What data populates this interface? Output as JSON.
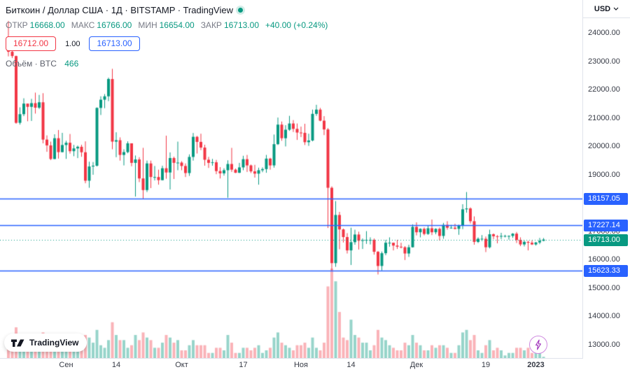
{
  "header": {
    "symbol_title": "Биткоин / Доллар США · 1Д · BITSTAMP · TradingView",
    "ohlc": {
      "open_label": "ОТКР",
      "open": "16668.00",
      "high_label": "МАКС",
      "high": "16766.00",
      "low_label": "МИН",
      "low": "16654.00",
      "close_label": "ЗАКР",
      "close": "16713.00",
      "change": "+40.00 (+0.24%)"
    },
    "sell_price": "16712.00",
    "spread": "1.00",
    "buy_price": "16713.00",
    "volume_label": "Объём · BTC",
    "volume_value": "466"
  },
  "price_axis": {
    "currency_label": "USD",
    "ticks": [
      {
        "label": "24000.00",
        "value": 24000
      },
      {
        "label": "23000.00",
        "value": 23000
      },
      {
        "label": "22000.00",
        "value": 22000
      },
      {
        "label": "21000.00",
        "value": 21000
      },
      {
        "label": "20000.00",
        "value": 20000
      },
      {
        "label": "19000.00",
        "value": 19000
      },
      {
        "label": "18000.00",
        "value": 18000
      },
      {
        "label": "17000.00",
        "value": 17000
      },
      {
        "label": "16000.00",
        "value": 16000
      },
      {
        "label": "15000.00",
        "value": 15000
      },
      {
        "label": "14000.00",
        "value": 14000
      },
      {
        "label": "13000.00",
        "value": 13000
      }
    ],
    "lines": [
      {
        "label": "18157.05",
        "value": 18157.05,
        "color": "#2962ff"
      },
      {
        "label": "17227.14",
        "value": 17227.14,
        "color": "#2962ff"
      },
      {
        "label": "15623.33",
        "value": 15623.33,
        "color": "#2962ff"
      }
    ],
    "last_price": {
      "label": "16713.00",
      "value": 16713.0,
      "color": "#089981"
    }
  },
  "time_axis": {
    "labels": [
      {
        "label": "Сен",
        "index": 15,
        "year": false
      },
      {
        "label": "14",
        "index": 28,
        "year": false
      },
      {
        "label": "Окт",
        "index": 45,
        "year": false
      },
      {
        "label": "17",
        "index": 61,
        "year": false
      },
      {
        "label": "Ноя",
        "index": 76,
        "year": false
      },
      {
        "label": "14",
        "index": 89,
        "year": false
      },
      {
        "label": "Дек",
        "index": 106,
        "year": false
      },
      {
        "label": "19",
        "index": 124,
        "year": false
      },
      {
        "label": "2023",
        "index": 137,
        "year": true
      }
    ]
  },
  "footer": {
    "logo_text": "TradingView"
  },
  "colors": {
    "up": "#089981",
    "down": "#f23645",
    "vol_up": "rgba(8,153,129,0.42)",
    "vol_down": "rgba(242,54,69,0.38)",
    "level_line": "#2962ff",
    "axis_text": "#363a45"
  },
  "chart_data": {
    "type": "candlestick",
    "title": "Биткоин / Доллар США, 1Д, BITSTAMP",
    "ylabel": "USD",
    "price_range": [
      12530,
      25170
    ],
    "volume_axis_max": 35,
    "levels": [
      18157.05,
      17227.14,
      15623.33
    ],
    "last_close": 16713.0,
    "candles_format": [
      "date(MM-DD)",
      "open",
      "high",
      "low",
      "close",
      "volume_kBTC"
    ],
    "candles": [
      [
        "08-17",
        23854,
        24430,
        23180,
        23342,
        7
      ],
      [
        "08-18",
        23342,
        23590,
        23120,
        23191,
        5
      ],
      [
        "08-19",
        23191,
        23205,
        20800,
        20834,
        12
      ],
      [
        "08-20",
        20834,
        21380,
        20770,
        21139,
        7
      ],
      [
        "08-21",
        21139,
        21700,
        21070,
        21512,
        5
      ],
      [
        "08-22",
        21512,
        21512,
        20890,
        21398,
        7
      ],
      [
        "08-23",
        21398,
        21680,
        20900,
        21528,
        6
      ],
      [
        "08-24",
        21528,
        21900,
        21160,
        21368,
        6
      ],
      [
        "08-25",
        21368,
        21820,
        21320,
        21559,
        5
      ],
      [
        "08-26",
        21559,
        21880,
        20110,
        20241,
        10
      ],
      [
        "08-27",
        20241,
        20390,
        19810,
        20037,
        6
      ],
      [
        "08-28",
        20037,
        20170,
        19520,
        19556,
        6
      ],
      [
        "08-29",
        19556,
        20430,
        19550,
        20290,
        7
      ],
      [
        "08-30",
        20290,
        20580,
        19570,
        19799,
        8
      ],
      [
        "08-31",
        19799,
        20480,
        19790,
        20050,
        6
      ],
      [
        "09-01",
        20050,
        20200,
        19561,
        20130,
        6
      ],
      [
        "09-02",
        20130,
        20440,
        19747,
        19832,
        6
      ],
      [
        "09-03",
        19832,
        20055,
        19655,
        19930,
        3
      ],
      [
        "09-04",
        19930,
        20030,
        19588,
        19988,
        3
      ],
      [
        "09-05",
        19988,
        20060,
        19635,
        19794,
        5
      ],
      [
        "09-06",
        19794,
        20180,
        18700,
        18790,
        9
      ],
      [
        "09-07",
        18790,
        19461,
        18540,
        19292,
        8
      ],
      [
        "09-08",
        19292,
        19450,
        19000,
        19320,
        6
      ],
      [
        "09-09",
        19320,
        21380,
        19292,
        21360,
        11
      ],
      [
        "09-10",
        21360,
        21770,
        21110,
        21650,
        5
      ],
      [
        "09-11",
        21650,
        21850,
        21350,
        21770,
        4
      ],
      [
        "09-12",
        21770,
        22430,
        21600,
        22380,
        7
      ],
      [
        "09-13",
        22380,
        22740,
        19900,
        20170,
        14
      ],
      [
        "09-14",
        20170,
        20500,
        19620,
        20220,
        9
      ],
      [
        "09-15",
        20220,
        20320,
        19500,
        19700,
        7
      ],
      [
        "09-16",
        19700,
        19900,
        19330,
        19800,
        7
      ],
      [
        "09-17",
        19800,
        20180,
        19760,
        20110,
        4
      ],
      [
        "09-18",
        20110,
        20110,
        19300,
        19420,
        5
      ],
      [
        "09-19",
        19420,
        19680,
        18230,
        19540,
        9
      ],
      [
        "09-20",
        19540,
        19620,
        18740,
        18870,
        7
      ],
      [
        "09-21",
        18870,
        19950,
        18150,
        18460,
        10
      ],
      [
        "09-22",
        18460,
        19500,
        18390,
        19400,
        8
      ],
      [
        "09-23",
        19400,
        19500,
        18530,
        18920,
        7
      ],
      [
        "09-24",
        18920,
        19310,
        18800,
        18920,
        4
      ],
      [
        "09-25",
        18920,
        19180,
        18650,
        18810,
        4
      ],
      [
        "09-26",
        18810,
        19320,
        18800,
        19230,
        6
      ],
      [
        "09-27",
        19230,
        20380,
        18860,
        19080,
        9
      ],
      [
        "09-28",
        19080,
        19790,
        18480,
        19590,
        8
      ],
      [
        "09-29",
        19590,
        19640,
        18850,
        19420,
        6
      ],
      [
        "09-30",
        19420,
        20170,
        19160,
        19430,
        7
      ],
      [
        "10-01",
        19430,
        19480,
        19160,
        19310,
        3
      ],
      [
        "10-02",
        19310,
        19400,
        18920,
        19060,
        3
      ],
      [
        "10-03",
        19060,
        19720,
        18960,
        19630,
        5
      ],
      [
        "10-04",
        19630,
        20475,
        19500,
        20340,
        7
      ],
      [
        "10-05",
        20340,
        20370,
        19750,
        20160,
        5
      ],
      [
        "10-06",
        20160,
        20450,
        19870,
        19960,
        5
      ],
      [
        "10-07",
        19960,
        20060,
        19320,
        19530,
        5
      ],
      [
        "10-08",
        19530,
        19630,
        19240,
        19420,
        2
      ],
      [
        "10-09",
        19420,
        19560,
        19320,
        19440,
        2
      ],
      [
        "10-10",
        19440,
        19525,
        19020,
        19130,
        4
      ],
      [
        "10-11",
        19130,
        19270,
        18870,
        19050,
        4
      ],
      [
        "10-12",
        19050,
        19230,
        18970,
        19160,
        3
      ],
      [
        "10-13",
        19160,
        19510,
        18190,
        19380,
        9
      ],
      [
        "10-14",
        19380,
        19950,
        19100,
        19180,
        6
      ],
      [
        "10-15",
        19180,
        19220,
        19060,
        19070,
        2
      ],
      [
        "10-16",
        19070,
        19420,
        19060,
        19260,
        2
      ],
      [
        "10-17",
        19260,
        19670,
        19160,
        19550,
        4
      ],
      [
        "10-18",
        19550,
        19700,
        19100,
        19330,
        4
      ],
      [
        "10-19",
        19330,
        19360,
        19060,
        19120,
        3
      ],
      [
        "10-20",
        19120,
        19350,
        18900,
        19040,
        4
      ],
      [
        "10-21",
        19040,
        19250,
        18650,
        19160,
        5
      ],
      [
        "10-22",
        19160,
        19260,
        19090,
        19200,
        2
      ],
      [
        "10-23",
        19200,
        19700,
        19070,
        19570,
        3
      ],
      [
        "10-24",
        19570,
        19600,
        19180,
        19330,
        4
      ],
      [
        "10-25",
        19330,
        20420,
        19250,
        20080,
        8
      ],
      [
        "10-26",
        20080,
        21020,
        20050,
        20770,
        10
      ],
      [
        "10-27",
        20770,
        20880,
        20200,
        20290,
        6
      ],
      [
        "10-28",
        20290,
        20750,
        20000,
        20590,
        5
      ],
      [
        "10-29",
        20590,
        21080,
        20550,
        20810,
        4
      ],
      [
        "10-30",
        20810,
        20930,
        20510,
        20620,
        3
      ],
      [
        "10-31",
        20620,
        20810,
        20230,
        20490,
        5
      ],
      [
        "11-01",
        20490,
        20700,
        20330,
        20480,
        5
      ],
      [
        "11-02",
        20480,
        20800,
        20050,
        20150,
        6
      ],
      [
        "11-03",
        20150,
        20450,
        20020,
        20210,
        4
      ],
      [
        "11-04",
        20210,
        21300,
        20180,
        21150,
        8
      ],
      [
        "11-05",
        21150,
        21470,
        21080,
        21300,
        4
      ],
      [
        "11-06",
        21300,
        21360,
        20890,
        20910,
        3
      ],
      [
        "11-07",
        20910,
        21070,
        20400,
        20600,
        6
      ],
      [
        "11-08",
        20600,
        20650,
        17120,
        18540,
        28
      ],
      [
        "11-09",
        18540,
        18590,
        15590,
        15880,
        35
      ],
      [
        "11-10",
        15880,
        18070,
        15750,
        17580,
        30
      ],
      [
        "11-11",
        17580,
        17690,
        16370,
        17070,
        18
      ],
      [
        "11-12",
        17070,
        17100,
        16610,
        16800,
        8
      ],
      [
        "11-13",
        16800,
        16940,
        16220,
        16330,
        7
      ],
      [
        "11-14",
        16330,
        17130,
        15815,
        16620,
        15
      ],
      [
        "11-15",
        16620,
        17060,
        16530,
        16890,
        9
      ],
      [
        "11-16",
        16890,
        16990,
        16360,
        16670,
        8
      ],
      [
        "11-17",
        16670,
        16750,
        16380,
        16690,
        6
      ],
      [
        "11-18",
        16690,
        17010,
        16560,
        16700,
        6
      ],
      [
        "11-19",
        16700,
        16790,
        16540,
        16700,
        3
      ],
      [
        "11-20",
        16700,
        16750,
        16180,
        16280,
        5
      ],
      [
        "11-21",
        16280,
        16310,
        15480,
        15780,
        11
      ],
      [
        "11-22",
        15780,
        16290,
        15620,
        16230,
        8
      ],
      [
        "11-23",
        16230,
        16700,
        16160,
        16600,
        7
      ],
      [
        "11-24",
        16600,
        16790,
        16460,
        16600,
        5
      ],
      [
        "11-25",
        16600,
        16600,
        16330,
        16500,
        4
      ],
      [
        "11-26",
        16500,
        16700,
        16380,
        16460,
        3
      ],
      [
        "11-27",
        16460,
        16600,
        16400,
        16440,
        3
      ],
      [
        "11-28",
        16440,
        16480,
        15990,
        16220,
        6
      ],
      [
        "11-29",
        16220,
        16530,
        16100,
        16440,
        5
      ],
      [
        "11-30",
        16440,
        17250,
        16430,
        17160,
        9
      ],
      [
        "12-01",
        17160,
        17320,
        16860,
        16970,
        6
      ],
      [
        "12-02",
        16970,
        17110,
        16790,
        17090,
        5
      ],
      [
        "12-03",
        17090,
        17140,
        16860,
        16910,
        3
      ],
      [
        "12-04",
        16910,
        17200,
        16880,
        17110,
        3
      ],
      [
        "12-05",
        17110,
        17420,
        16870,
        16970,
        5
      ],
      [
        "12-06",
        16970,
        17110,
        16900,
        17090,
        4
      ],
      [
        "12-07",
        17090,
        17140,
        16680,
        16840,
        5
      ],
      [
        "12-08",
        16840,
        17300,
        16740,
        17230,
        5
      ],
      [
        "12-09",
        17230,
        17360,
        17060,
        17130,
        4
      ],
      [
        "12-10",
        17130,
        17230,
        17100,
        17130,
        2
      ],
      [
        "12-11",
        17130,
        17270,
        17070,
        17090,
        2
      ],
      [
        "12-12",
        17090,
        17240,
        16880,
        17210,
        5
      ],
      [
        "12-13",
        17210,
        17960,
        17080,
        17780,
        10
      ],
      [
        "12-14",
        17780,
        18390,
        17660,
        17810,
        11
      ],
      [
        "12-15",
        17810,
        17850,
        17280,
        17360,
        7
      ],
      [
        "12-16",
        17360,
        17530,
        16530,
        16630,
        9
      ],
      [
        "12-17",
        16630,
        16790,
        16590,
        16740,
        3
      ],
      [
        "12-18",
        16740,
        16870,
        16660,
        16740,
        2
      ],
      [
        "12-19",
        16740,
        16820,
        16270,
        16440,
        5
      ],
      [
        "12-20",
        16440,
        17060,
        16400,
        16900,
        7
      ],
      [
        "12-21",
        16900,
        16930,
        16730,
        16830,
        3
      ],
      [
        "12-22",
        16830,
        16870,
        16580,
        16820,
        4
      ],
      [
        "12-23",
        16820,
        16950,
        16730,
        16840,
        3
      ],
      [
        "12-24",
        16840,
        16880,
        16790,
        16840,
        1
      ],
      [
        "12-25",
        16840,
        16860,
        16710,
        16840,
        2
      ],
      [
        "12-26",
        16840,
        16940,
        16770,
        16920,
        2
      ],
      [
        "12-27",
        16920,
        16980,
        16590,
        16700,
        4
      ],
      [
        "12-28",
        16700,
        16790,
        16480,
        16540,
        4
      ],
      [
        "12-29",
        16540,
        16680,
        16470,
        16630,
        3
      ],
      [
        "12-30",
        16630,
        16670,
        16330,
        16600,
        4
      ],
      [
        "12-31",
        16600,
        16680,
        16520,
        16540,
        2
      ],
      [
        "01-01",
        16540,
        16630,
        16500,
        16610,
        2
      ],
      [
        "01-02",
        16610,
        16770,
        16550,
        16668,
        3
      ],
      [
        "01-03",
        16668,
        16766,
        16654,
        16713,
        0.47
      ]
    ]
  }
}
